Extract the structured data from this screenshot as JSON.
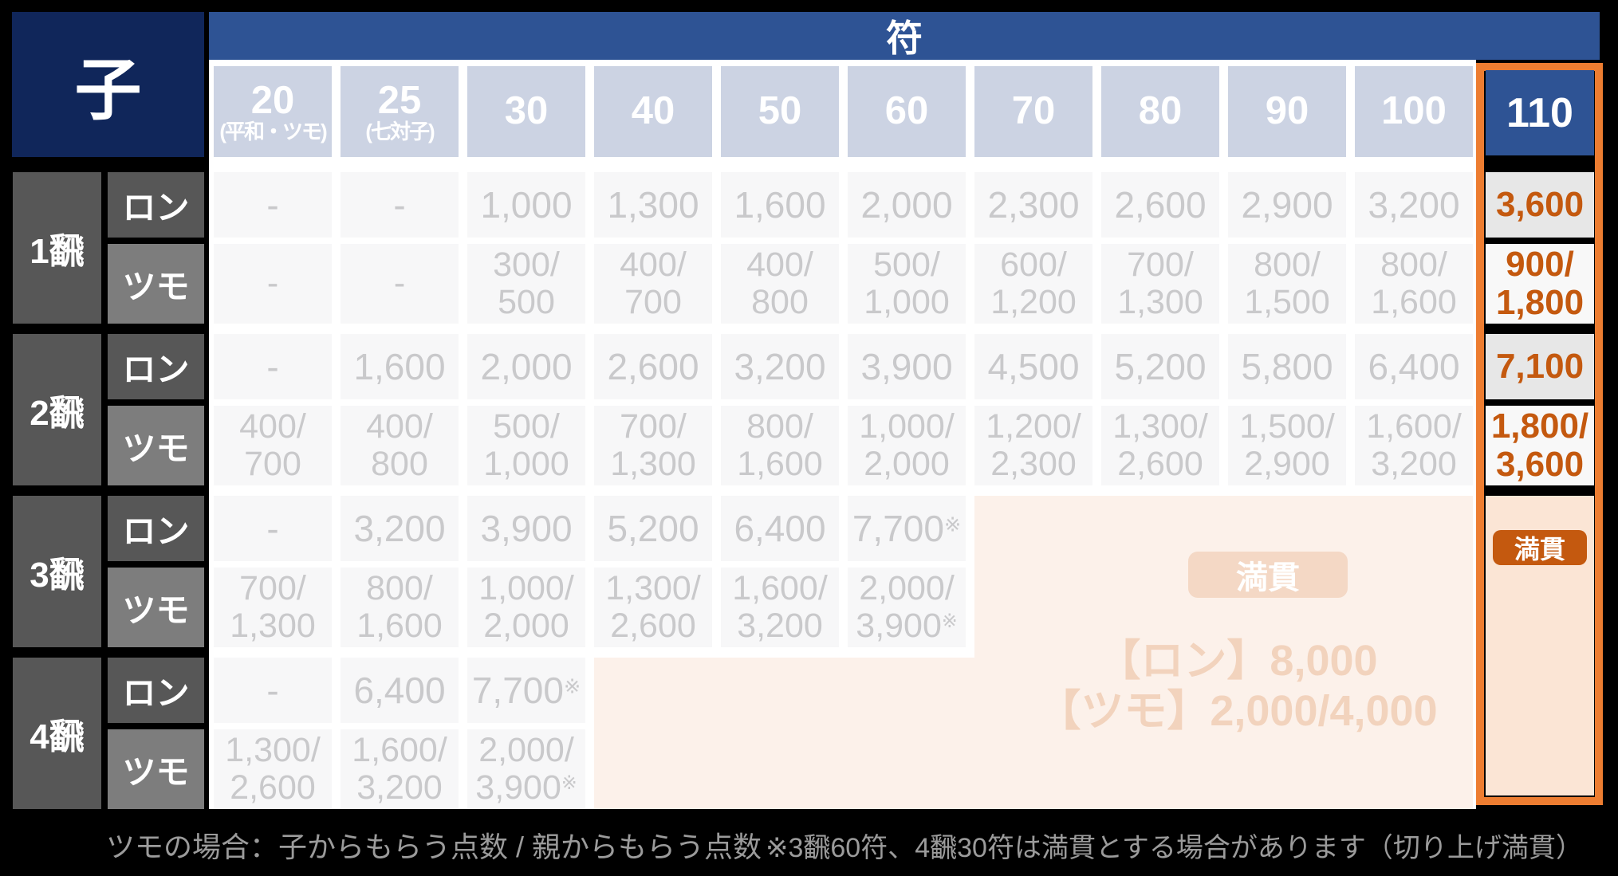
{
  "title": {
    "corner": "子",
    "fu": "符"
  },
  "columns": [
    {
      "label": "20",
      "note": "(平和・ツモ)"
    },
    {
      "label": "25",
      "note": "(七対子)"
    },
    {
      "label": "30",
      "note": ""
    },
    {
      "label": "40",
      "note": ""
    },
    {
      "label": "50",
      "note": ""
    },
    {
      "label": "60",
      "note": ""
    },
    {
      "label": "70",
      "note": ""
    },
    {
      "label": "80",
      "note": ""
    },
    {
      "label": "90",
      "note": ""
    },
    {
      "label": "100",
      "note": ""
    }
  ],
  "column110": {
    "label": "110",
    "values": [
      "3,600",
      "900/1,800",
      "7,100",
      "1,800/3,600"
    ],
    "mangan_badge": "満貫"
  },
  "row_labels": {
    "ron": "ロン",
    "tsumo": "ツモ"
  },
  "rows": [
    {
      "han": "1飜",
      "ron": [
        "-",
        "-",
        "1,000",
        "1,300",
        "1,600",
        "2,000",
        "2,300",
        "2,600",
        "2,900",
        "3,200"
      ],
      "tsumo": [
        "-",
        "-",
        "300/500",
        "400/700",
        "400/800",
        "500/1,000",
        "600/1,200",
        "700/1,300",
        "800/1,500",
        "800/1,600"
      ]
    },
    {
      "han": "2飜",
      "ron": [
        "-",
        "1,600",
        "2,000",
        "2,600",
        "3,200",
        "3,900",
        "4,500",
        "5,200",
        "5,800",
        "6,400"
      ],
      "tsumo": [
        "400/700",
        "400/800",
        "500/1,000",
        "700/1,300",
        "800/1,600",
        "1,000/2,000",
        "1,200/2,300",
        "1,300/2,600",
        "1,500/2,900",
        "1,600/3,200"
      ]
    },
    {
      "han": "3飜",
      "ron": [
        "-",
        "3,200",
        "3,900",
        "5,200",
        "6,400",
        "7,700※",
        "",
        "",
        "",
        ""
      ],
      "tsumo": [
        "700/1,300",
        "800/1,600",
        "1,000/2,000",
        "1,300/2,600",
        "1,600/3,200",
        "2,000/3,900※",
        "",
        "",
        "",
        ""
      ]
    },
    {
      "han": "4飜",
      "ron": [
        "-",
        "6,400",
        "7,700※",
        "",
        "",
        "",
        "",
        "",
        "",
        ""
      ],
      "tsumo": [
        "1,300/2,600",
        "1,600/3,200",
        "2,000/3,900※",
        "",
        "",
        "",
        "",
        "",
        "",
        ""
      ]
    }
  ],
  "mangan_area": {
    "badge": "満貫",
    "ron_line": "【ロン】8,000",
    "tsumo_line": "【ツモ】2,000/4,000"
  },
  "footer": {
    "left": "ツモの場合：子からもらう点数 / 親からもらう点数",
    "right": "※3飜60符、4飜30符は満貫とする場合があります（切り上げ満貫）"
  },
  "colors": {
    "page_bg": "#000000",
    "white": "#FFFFFF",
    "navy": "#10265A",
    "bar_blue": "#2E5394",
    "header_tile": "#CCD3E3",
    "cell_bg": "#F7F7F8",
    "cell_text": "#C9C9CB",
    "head_dark": "#575757",
    "head_mid": "#7D7D7D",
    "orange_border": "#ED7D31",
    "orange_text": "#C4590F",
    "col110_ron_bg": "#E7E7E7",
    "col110_tsumo_bg": "#F8F8F8",
    "cream_main": "#FCF1EA",
    "cream_110": "#FBE5D5",
    "cream_badge_bg": "#F4D8C5",
    "cream_text": "#F2D3BD",
    "badge_orange": "#C4590F",
    "footer_text": "#9B9B9B"
  }
}
